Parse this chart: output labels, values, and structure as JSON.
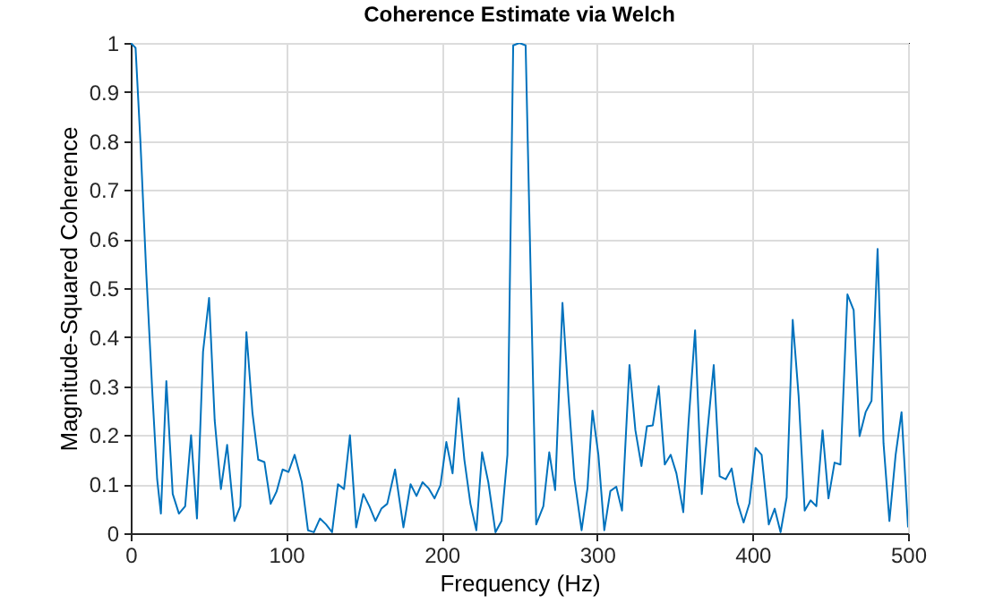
{
  "chart_data": {
    "type": "line",
    "title": "Coherence Estimate via Welch",
    "xlabel": "Frequency (Hz)",
    "ylabel": "Magnitude-Squared Coherence",
    "x": [
      0,
      3.1,
      6.2,
      10,
      14,
      17,
      19.4,
      22.9,
      27,
      31,
      35,
      38.8,
      42.6,
      46.5,
      50.4,
      54,
      58,
      62,
      66.7,
      70.5,
      74.4,
      78.3,
      82,
      86,
      90,
      93.8,
      97.7,
      101.5,
      105.4,
      110,
      114,
      117.8,
      121.7,
      125.6,
      129.5,
      133.3,
      137.2,
      141,
      145,
      149.6,
      153.5,
      157.4,
      161.2,
      165,
      170,
      175.4,
      180,
      183.8,
      187.7,
      191.5,
      195.4,
      199.2,
      203,
      207,
      210.8,
      214.6,
      218.5,
      222.3,
      226,
      230,
      234.6,
      238.5,
      242.3,
      246,
      250,
      254,
      260.8,
      265.4,
      269.2,
      273,
      277.7,
      281.5,
      285.4,
      290,
      293.8,
      297,
      300.8,
      304.6,
      308.5,
      312.3,
      316,
      320.8,
      324.6,
      328.5,
      332,
      335.8,
      339.6,
      343.5,
      347.3,
      351,
      355.4,
      358.8,
      363,
      367.3,
      371,
      375,
      378.8,
      382.7,
      386.5,
      390.4,
      394.2,
      398,
      401.9,
      405.8,
      410.4,
      414.2,
      418,
      421.9,
      425.8,
      429.6,
      433.5,
      437.3,
      441,
      445,
      448.8,
      452.7,
      456.5,
      461,
      465,
      468.8,
      472.7,
      476.5,
      480.4,
      484.2,
      488,
      492,
      495.8,
      500
    ],
    "series": [
      {
        "color": "#0072bd",
        "values": [
          1.0,
          0.99,
          0.8,
          0.53,
          0.28,
          0.11,
          0.04,
          0.31,
          0.08,
          0.04,
          0.055,
          0.2,
          0.03,
          0.37,
          0.48,
          0.23,
          0.09,
          0.18,
          0.025,
          0.055,
          0.41,
          0.245,
          0.15,
          0.145,
          0.06,
          0.085,
          0.13,
          0.125,
          0.16,
          0.105,
          0.006,
          0.002,
          0.03,
          0.018,
          0.002,
          0.1,
          0.09,
          0.2,
          0.012,
          0.08,
          0.055,
          0.025,
          0.05,
          0.06,
          0.13,
          0.012,
          0.1,
          0.076,
          0.104,
          0.092,
          0.071,
          0.098,
          0.186,
          0.122,
          0.275,
          0.15,
          0.06,
          0.006,
          0.165,
          0.104,
          0.002,
          0.025,
          0.16,
          0.995,
          1.0,
          0.995,
          0.018,
          0.055,
          0.165,
          0.088,
          0.47,
          0.28,
          0.11,
          0.006,
          0.092,
          0.25,
          0.16,
          0.006,
          0.086,
          0.095,
          0.046,
          0.343,
          0.21,
          0.137,
          0.218,
          0.22,
          0.3,
          0.14,
          0.16,
          0.122,
          0.043,
          0.226,
          0.414,
          0.08,
          0.21,
          0.343,
          0.116,
          0.11,
          0.132,
          0.061,
          0.022,
          0.061,
          0.174,
          0.16,
          0.018,
          0.05,
          0.002,
          0.073,
          0.435,
          0.28,
          0.046,
          0.067,
          0.055,
          0.21,
          0.071,
          0.144,
          0.14,
          0.487,
          0.455,
          0.198,
          0.247,
          0.27,
          0.58,
          0.184,
          0.025,
          0.16,
          0.247,
          0.012
        ]
      }
    ],
    "xlim": [
      0,
      500
    ],
    "xticks": [
      0,
      100,
      200,
      300,
      400,
      500
    ],
    "ylim": [
      0,
      1
    ],
    "yticks": [
      0,
      0.1,
      0.2,
      0.3,
      0.4,
      0.5,
      0.6,
      0.7,
      0.8,
      0.9,
      1
    ],
    "grid": true,
    "line_style": "solid"
  }
}
